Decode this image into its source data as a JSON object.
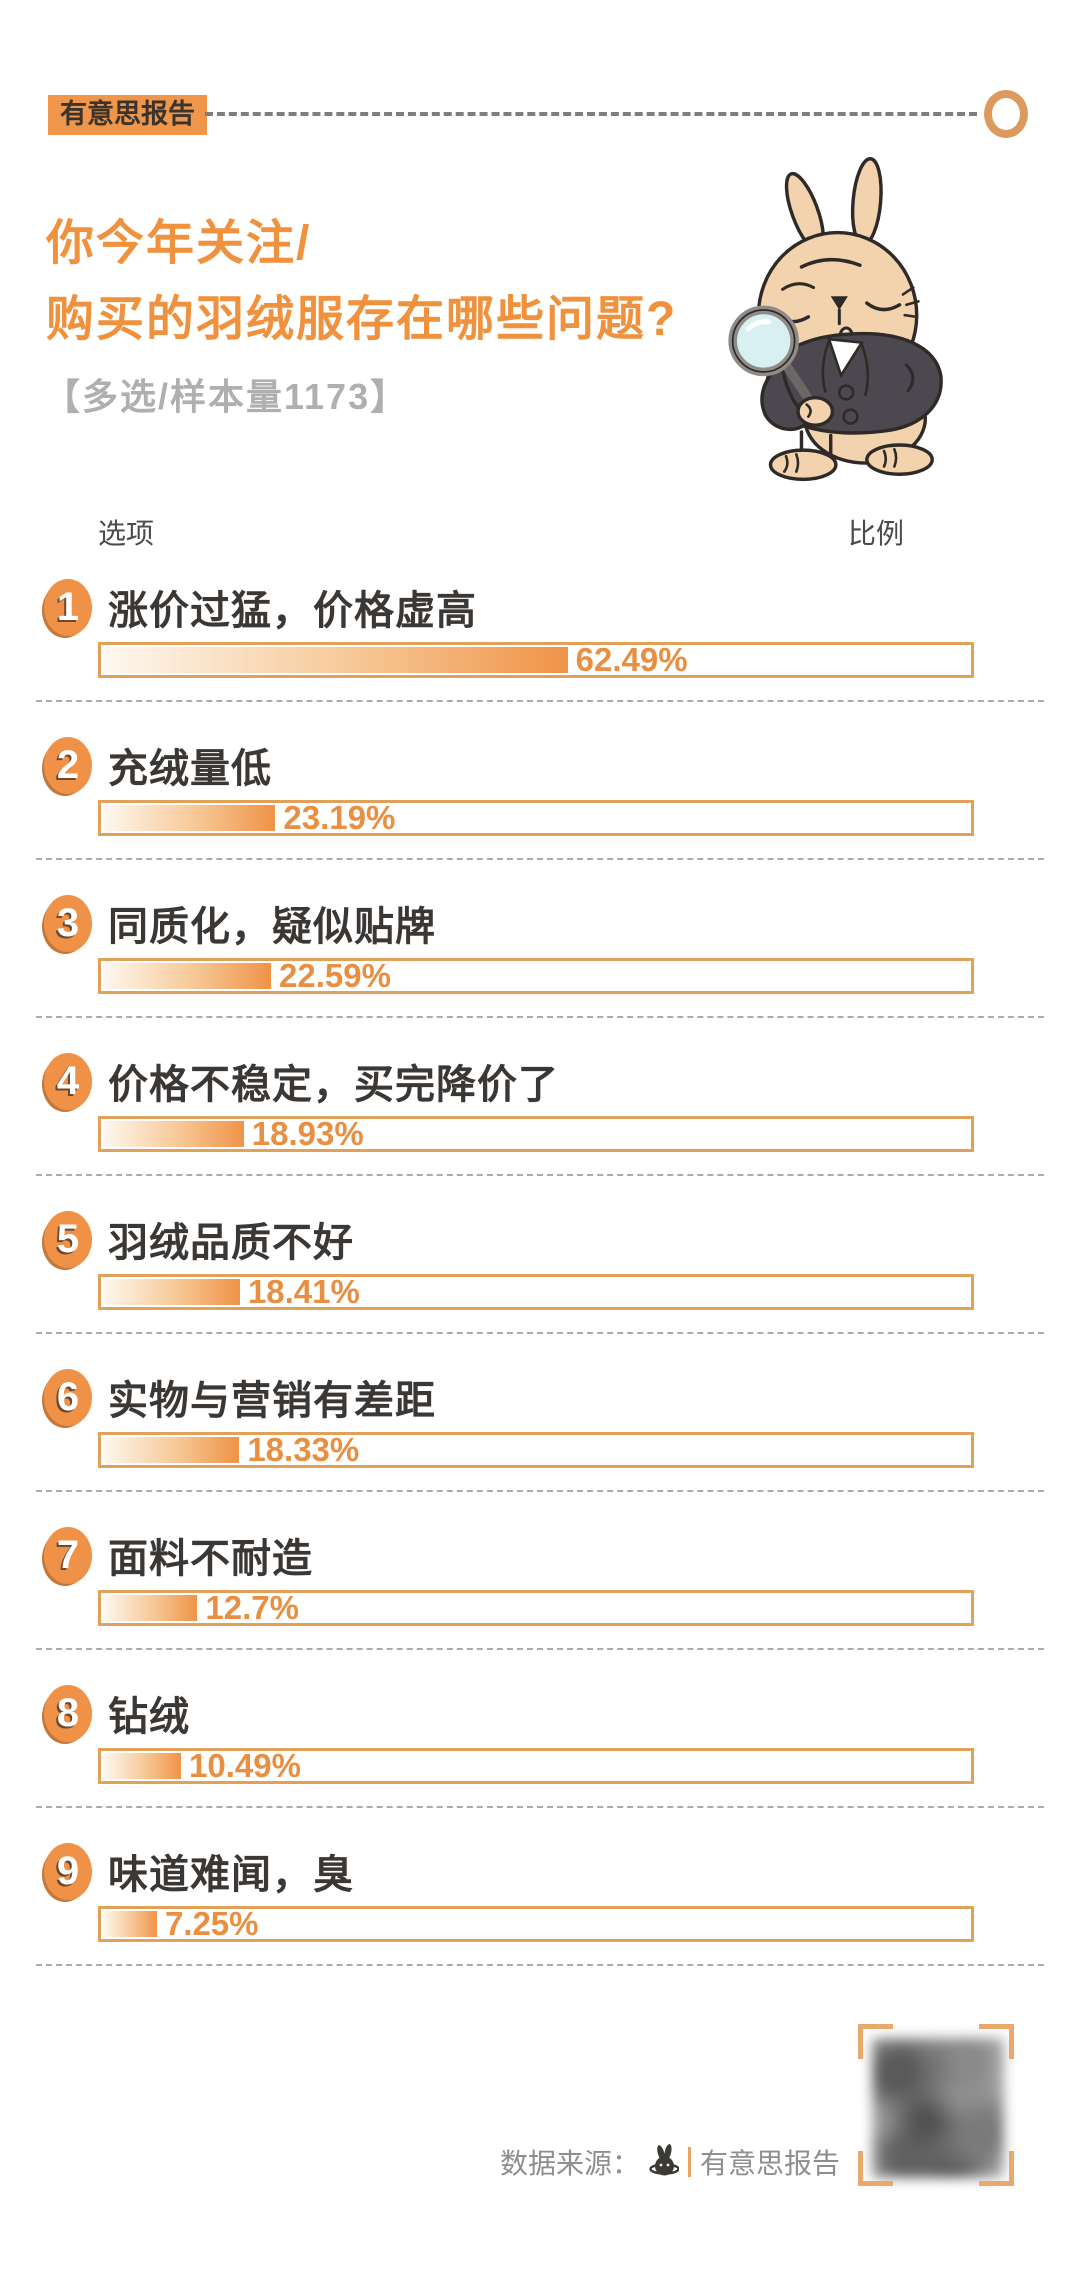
{
  "header": {
    "badge": "有意思报告"
  },
  "title": {
    "line1": "你今年关注/",
    "line2": "购买的羽绒服存在哪些问题?",
    "subtitle": "【多选/样本量1173】"
  },
  "table_headers": {
    "option": "选项",
    "ratio": "比例"
  },
  "chart_data": {
    "type": "bar",
    "orientation": "horizontal",
    "title": "你今年关注/购买的羽绒服存在哪些问题?",
    "subtitle": "【多选/样本量1173】",
    "multi_select": true,
    "sample_size": 1173,
    "categories": [
      "涨价过猛，价格虚高",
      "充绒量低",
      "同质化，疑似贴牌",
      "价格不稳定，买完降价了",
      "羽绒品质不好",
      "实物与营销有差距",
      "面料不耐造",
      "钻绒",
      "味道难闻，臭"
    ],
    "values": [
      62.49,
      23.19,
      22.59,
      18.93,
      18.41,
      18.33,
      12.7,
      10.49,
      7.25
    ],
    "value_labels": [
      "62.49%",
      "23.19%",
      "22.59%",
      "18.93%",
      "18.41%",
      "18.33%",
      "12.7%",
      "10.49%",
      "7.25%"
    ],
    "xlabel": "比例",
    "ylabel": "选项",
    "xlim": [
      0,
      117
    ],
    "grid": false,
    "legend": false,
    "source": "有意思报告"
  },
  "footer": {
    "source_label": "数据来源：",
    "source_name": "有意思报告"
  },
  "icons": {
    "mascot": "rabbit-detective-with-magnifier",
    "footer_logo": "rabbit-logo",
    "qr": "blurred-qr-code",
    "header_ring": "orange-ring"
  },
  "colors": {
    "accent_orange": "#F0913E",
    "badge_bg": "#F0964B",
    "bar_fill_end": "#EF9348",
    "bar_border": "#E2A158",
    "percent_text": "#E88F42",
    "label_dark": "#3B3734",
    "subtitle_gray": "#AFAFAF",
    "separator_gray": "#ABABAB",
    "footer_gray": "#8E8E8E",
    "suit_gray": "#4D4850",
    "rabbit_beige": "#F2D3AE"
  }
}
